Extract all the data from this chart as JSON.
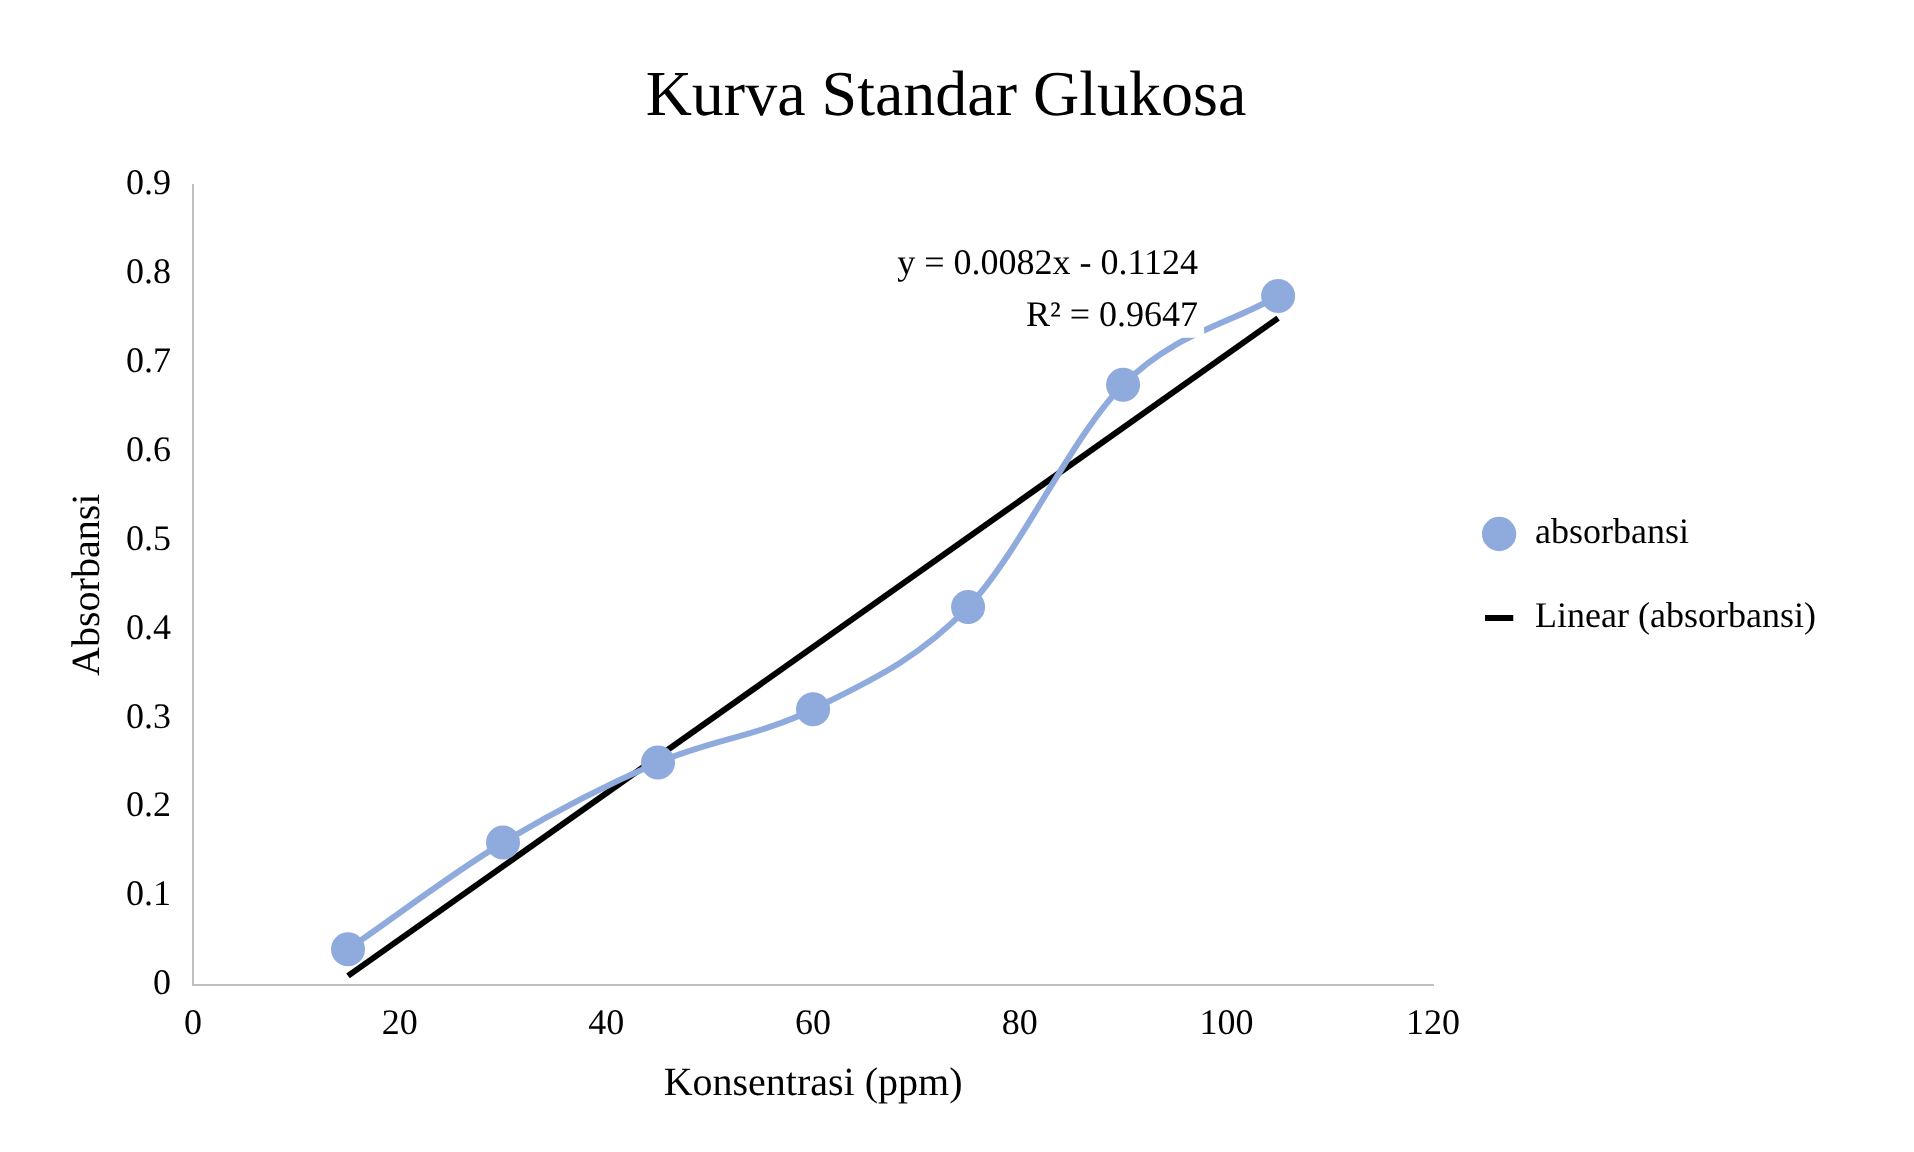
{
  "chart_data": {
    "type": "line",
    "title": "Kurva Standar Glukosa",
    "xlabel": "Konsentrasi (ppm)",
    "ylabel": "Absorbansi",
    "x": [
      15,
      30,
      45,
      60,
      75,
      90,
      105
    ],
    "series": [
      {
        "name": "absorbansi",
        "color": "#8faadc",
        "values": [
          0.04,
          0.16,
          0.25,
          0.31,
          0.425,
          0.675,
          0.775
        ],
        "marker": "circle"
      },
      {
        "name": "Linear (absorbansi)",
        "type": "line",
        "color": "#000000",
        "x": [
          15,
          105
        ],
        "values": [
          0.01,
          0.75
        ],
        "marker": "none"
      }
    ],
    "annotations": [
      "y = 0.0082x - 0.1124",
      "R² = 0.9647"
    ],
    "xlim": [
      0,
      120
    ],
    "xticks": [
      0,
      20,
      40,
      60,
      80,
      100,
      120
    ],
    "ylim": [
      0,
      0.9
    ],
    "yticks": [
      0,
      0.1,
      0.2,
      0.3,
      0.4,
      0.5,
      0.6,
      0.7,
      0.8,
      0.9
    ],
    "grid": false,
    "legend": "right"
  }
}
